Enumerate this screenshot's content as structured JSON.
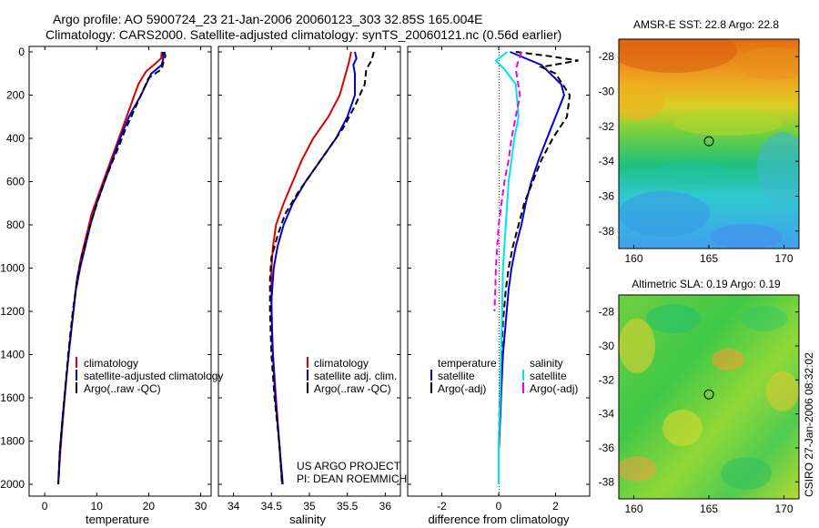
{
  "header": {
    "line1": "Argo profile: AO 5900724_23 21-Jan-2006 20060123_303 32.85S 165.004E",
    "line2": "Climatology: CARS2000. Satellite-adjusted climatology: synTS_20060121.nc (0.56d earlier)"
  },
  "side_stamp": "CSIRO 27-Jan-2006 08:32:02",
  "project_note": {
    "line1": "US ARGO PROJECT",
    "line2": "PI: DEAN ROEMMICH"
  },
  "colors": {
    "climatology": "#dd0000",
    "satellite": "#0000dd",
    "argo": "#000000",
    "cyan": "#00e5e5",
    "magenta": "#ee00ee"
  },
  "chart_data": [
    {
      "type": "line",
      "xlabel": "temperature",
      "xlim": [
        -3,
        32
      ],
      "xticks": [
        "0",
        "10",
        "20",
        "30"
      ],
      "ylim": [
        0,
        2050
      ],
      "yticks": [
        "0",
        "200",
        "400",
        "600",
        "800",
        "1000",
        "1200",
        "1400",
        "1600",
        "1800",
        "2000"
      ],
      "y_reversed": true,
      "legend": [
        "climatology",
        "satellite-adjusted climatology",
        "Argo(..raw -QC)"
      ],
      "series": [
        {
          "name": "climatology",
          "color": "#dd0000",
          "dash": false,
          "points": [
            [
              22.5,
              0
            ],
            [
              22.4,
              30
            ],
            [
              21,
              60
            ],
            [
              19.5,
              90
            ],
            [
              18,
              150
            ],
            [
              16.5,
              250
            ],
            [
              15,
              350
            ],
            [
              13.5,
              450
            ],
            [
              12,
              550
            ],
            [
              10.5,
              650
            ],
            [
              9,
              750
            ],
            [
              8,
              850
            ],
            [
              7,
              950
            ],
            [
              6.2,
              1050
            ],
            [
              5.5,
              1200
            ],
            [
              4.8,
              1350
            ],
            [
              4.2,
              1500
            ],
            [
              3.5,
              1700
            ],
            [
              3,
              1850
            ],
            [
              2.6,
              2000
            ]
          ]
        },
        {
          "name": "satellite-adjusted climatology",
          "color": "#0000dd",
          "dash": false,
          "points": [
            [
              22.7,
              0
            ],
            [
              22.8,
              30
            ],
            [
              22.5,
              60
            ],
            [
              20.5,
              100
            ],
            [
              18.5,
              200
            ],
            [
              16.2,
              300
            ],
            [
              14.5,
              400
            ],
            [
              13,
              500
            ],
            [
              11.5,
              600
            ],
            [
              10,
              700
            ],
            [
              8.8,
              800
            ],
            [
              7.8,
              900
            ],
            [
              6.8,
              1000
            ],
            [
              6,
              1100
            ],
            [
              5.3,
              1250
            ],
            [
              4.6,
              1400
            ],
            [
              4,
              1550
            ],
            [
              3.4,
              1700
            ],
            [
              2.9,
              1850
            ],
            [
              2.6,
              2000
            ]
          ]
        },
        {
          "name": "Argo(..raw -QC)",
          "color": "#000000",
          "dash": true,
          "points": [
            [
              23,
              0
            ],
            [
              23.2,
              20
            ],
            [
              22.8,
              50
            ],
            [
              22.5,
              80
            ],
            [
              20,
              120
            ],
            [
              18.5,
              200
            ],
            [
              17,
              280
            ],
            [
              15.5,
              360
            ],
            [
              14.2,
              440
            ],
            [
              12.8,
              520
            ],
            [
              11.5,
              600
            ],
            [
              10.2,
              690
            ],
            [
              9,
              780
            ],
            [
              8,
              870
            ],
            [
              7,
              960
            ],
            [
              6.2,
              1060
            ],
            [
              5.4,
              1200
            ],
            [
              4.6,
              1380
            ],
            [
              4,
              1540
            ],
            [
              3.4,
              1700
            ],
            [
              2.9,
              1850
            ],
            [
              2.6,
              2000
            ]
          ]
        }
      ]
    },
    {
      "type": "line",
      "xlabel": "salinity",
      "xlim": [
        33.8,
        36.2
      ],
      "xticks": [
        "34",
        "34.5",
        "35",
        "35.5",
        "36"
      ],
      "ylim": [
        0,
        2050
      ],
      "y_reversed": true,
      "legend": [
        "climatology",
        "satellite adj. clim.",
        "Argo(..raw -QC)"
      ],
      "series": [
        {
          "name": "climatology",
          "color": "#dd0000",
          "dash": false,
          "points": [
            [
              35.55,
              0
            ],
            [
              35.52,
              50
            ],
            [
              35.48,
              100
            ],
            [
              35.4,
              200
            ],
            [
              35.25,
              300
            ],
            [
              35.05,
              400
            ],
            [
              34.9,
              500
            ],
            [
              34.78,
              600
            ],
            [
              34.66,
              700
            ],
            [
              34.56,
              800
            ],
            [
              34.52,
              900
            ],
            [
              34.5,
              1000
            ],
            [
              34.5,
              1200
            ],
            [
              34.52,
              1400
            ],
            [
              34.56,
              1600
            ],
            [
              34.6,
              1800
            ],
            [
              34.64,
              2000
            ]
          ]
        },
        {
          "name": "satellite adj. clim.",
          "color": "#0000dd",
          "dash": false,
          "points": [
            [
              35.6,
              0
            ],
            [
              35.62,
              30
            ],
            [
              35.58,
              60
            ],
            [
              35.6,
              100
            ],
            [
              35.6,
              200
            ],
            [
              35.5,
              300
            ],
            [
              35.35,
              400
            ],
            [
              35.15,
              500
            ],
            [
              34.95,
              600
            ],
            [
              34.78,
              700
            ],
            [
              34.66,
              800
            ],
            [
              34.58,
              900
            ],
            [
              34.53,
              1000
            ],
            [
              34.5,
              1150
            ],
            [
              34.51,
              1350
            ],
            [
              34.55,
              1600
            ],
            [
              34.6,
              1800
            ],
            [
              34.65,
              2000
            ]
          ]
        },
        {
          "name": "Argo(..raw -QC)",
          "color": "#000000",
          "dash": true,
          "points": [
            [
              35.85,
              0
            ],
            [
              35.82,
              40
            ],
            [
              35.75,
              80
            ],
            [
              35.73,
              150
            ],
            [
              35.6,
              250
            ],
            [
              35.45,
              350
            ],
            [
              35.25,
              450
            ],
            [
              35.05,
              550
            ],
            [
              34.85,
              650
            ],
            [
              34.68,
              750
            ],
            [
              34.58,
              850
            ],
            [
              34.5,
              950
            ],
            [
              34.48,
              1050
            ],
            [
              34.48,
              1200
            ],
            [
              34.5,
              1400
            ],
            [
              34.54,
              1600
            ],
            [
              34.6,
              1800
            ],
            [
              34.64,
              2000
            ]
          ]
        }
      ]
    },
    {
      "type": "line",
      "xlabel": "difference from climatology",
      "xlim": [
        -3.2,
        3.2
      ],
      "xticks": [
        "-2",
        "0",
        "2"
      ],
      "ylim": [
        0,
        2050
      ],
      "y_reversed": true,
      "legend": [
        "temperature",
        "salinity",
        "satellite",
        "satellite",
        "Argo(-adj)",
        "Argo(-adj)"
      ],
      "series": [
        {
          "name": "temperature satellite",
          "color": "#0000dd",
          "dash": false,
          "points": [
            [
              0.4,
              0
            ],
            [
              1.5,
              60
            ],
            [
              2.2,
              150
            ],
            [
              2.3,
              200
            ],
            [
              2,
              300
            ],
            [
              1.7,
              400
            ],
            [
              1.4,
              500
            ],
            [
              1.15,
              600
            ],
            [
              0.95,
              700
            ],
            [
              0.8,
              800
            ],
            [
              0.6,
              900
            ],
            [
              0.45,
              1000
            ],
            [
              0.35,
              1100
            ],
            [
              0.25,
              1250
            ],
            [
              0.15,
              1400
            ],
            [
              0.1,
              1550
            ],
            [
              0.05,
              1700
            ],
            [
              0,
              1850
            ],
            [
              0,
              2000
            ]
          ]
        },
        {
          "name": "temperature Argo(-adj)",
          "color": "#000000",
          "dash": true,
          "points": [
            [
              0.6,
              0
            ],
            [
              1.8,
              20
            ],
            [
              2.8,
              40
            ],
            [
              1.5,
              70
            ],
            [
              2,
              100
            ],
            [
              2.5,
              200
            ],
            [
              2.4,
              300
            ],
            [
              1.9,
              400
            ],
            [
              1.5,
              500
            ],
            [
              1.2,
              600
            ],
            [
              0.9,
              700
            ],
            [
              0.7,
              800
            ],
            [
              0.5,
              900
            ],
            [
              0.35,
              1000
            ],
            [
              0.25,
              1100
            ],
            [
              0.15,
              1250
            ],
            [
              0.1,
              1400
            ],
            [
              0.05,
              1550
            ],
            [
              0.02,
              1700
            ],
            [
              0,
              1850
            ],
            [
              0,
              2000
            ]
          ]
        },
        {
          "name": "salinity satellite",
          "color": "#00e5e5",
          "dash": false,
          "points": [
            [
              0.3,
              0
            ],
            [
              -0.1,
              40
            ],
            [
              0.2,
              80
            ],
            [
              0.6,
              150
            ],
            [
              0.7,
              300
            ],
            [
              0.55,
              400
            ],
            [
              0.45,
              500
            ],
            [
              0.35,
              600
            ],
            [
              0.3,
              700
            ],
            [
              0.25,
              800
            ],
            [
              0.2,
              900
            ],
            [
              0.15,
              1000
            ],
            [
              0.12,
              1200
            ],
            [
              0.08,
              1400
            ],
            [
              0.05,
              1600
            ],
            [
              0,
              1800
            ],
            [
              0,
              2000
            ]
          ]
        },
        {
          "name": "salinity Argo(-adj)",
          "color": "#ee00ee",
          "dash": true,
          "points": [
            [
              0.8,
              0
            ],
            [
              0.6,
              80
            ],
            [
              0.75,
              200
            ],
            [
              0.6,
              300
            ],
            [
              0.45,
              400
            ],
            [
              0.35,
              500
            ],
            [
              0.2,
              600
            ],
            [
              0.1,
              700
            ],
            [
              0,
              800
            ],
            [
              -0.05,
              900
            ],
            [
              -0.1,
              1000
            ],
            [
              -0.12,
              1100
            ],
            [
              -0.15,
              1200
            ]
          ]
        }
      ]
    },
    {
      "type": "heatmap",
      "title": "AMSR-E SST: 22.8 Argo: 22.8",
      "xticks": [
        "160",
        "165",
        "170"
      ],
      "yticks": [
        "-28",
        "-30",
        "-32",
        "-34",
        "-36",
        "-38"
      ],
      "xlim": [
        159,
        171
      ],
      "ylim": [
        -39,
        -27
      ],
      "marker": {
        "lon": 165.0,
        "lat": -32.85
      }
    },
    {
      "type": "heatmap",
      "title": "Altimetric SLA: 0.19 Argo: 0.19",
      "xticks": [
        "160",
        "165",
        "170"
      ],
      "yticks": [
        "-28",
        "-30",
        "-32",
        "-34",
        "-36",
        "-38"
      ],
      "xlim": [
        159,
        171
      ],
      "ylim": [
        -39,
        -27
      ],
      "marker": {
        "lon": 165.0,
        "lat": -32.85
      }
    }
  ]
}
